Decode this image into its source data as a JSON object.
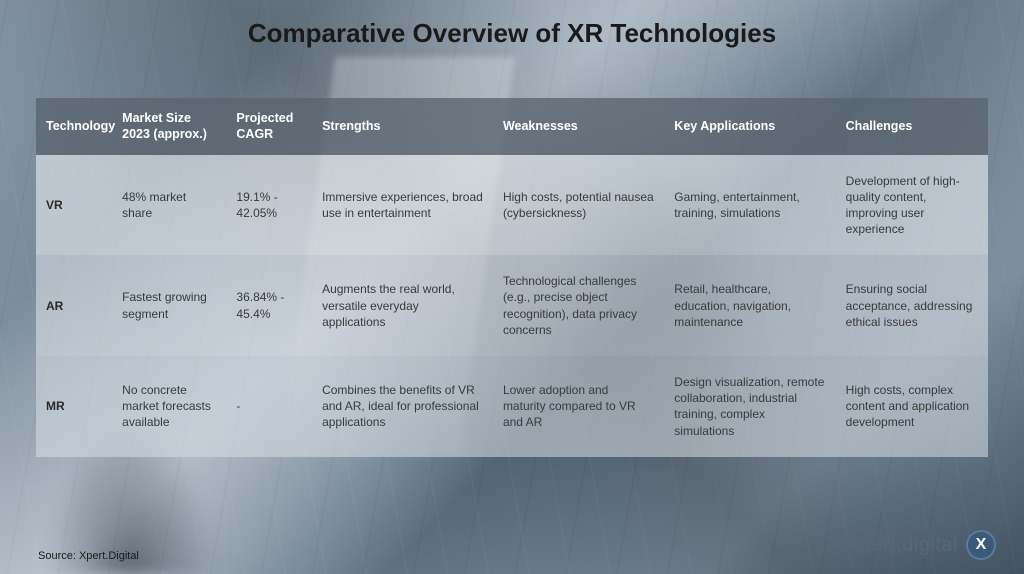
{
  "title": "Comparative Overview of XR Technologies",
  "source": "Source: Xpert.Digital",
  "brand": {
    "text": "xpert.digital",
    "icon_letter": "X"
  },
  "table": {
    "columns": [
      "Technology",
      "Market Size 2023 (approx.)",
      "Projected CAGR",
      "Strengths",
      "Weaknesses",
      "Key Applications",
      "Challenges"
    ],
    "rows": [
      {
        "tech": "VR",
        "market": "48% market share",
        "cagr": "19.1% - 42.05%",
        "strengths": "Immersive experiences, broad use in entertainment",
        "weaknesses": "High costs, potential nausea (cybersickness)",
        "applications": "Gaming, entertainment, training, simulations",
        "challenges": "Development of high-quality content, improving user experience"
      },
      {
        "tech": "AR",
        "market": "Fastest growing segment",
        "cagr": "36.84% - 45.4%",
        "strengths": "Augments the real world, versatile everyday applications",
        "weaknesses": "Technological challenges (e.g., precise object recognition), data privacy concerns",
        "applications": "Retail, healthcare, education, navigation, maintenance",
        "challenges": "Ensuring social acceptance, addressing ethical issues"
      },
      {
        "tech": "MR",
        "market": "No concrete market forecasts available",
        "cagr": "-",
        "strengths": "Combines the benefits of VR and AR, ideal for professional applications",
        "weaknesses": "Lower adoption and maturity compared to VR and AR",
        "applications": "Design visualization, remote collaboration, industrial training, complex simulations",
        "challenges": "High costs, complex content and application development"
      }
    ],
    "header_bg": "rgba(90,100,110,0.78)",
    "header_text_color": "#ffffff",
    "body_text_color": "#3a3a3a",
    "title_color": "#1a1a1a",
    "title_fontsize": 26,
    "cell_fontsize": 12,
    "header_fontsize": 12.5
  }
}
